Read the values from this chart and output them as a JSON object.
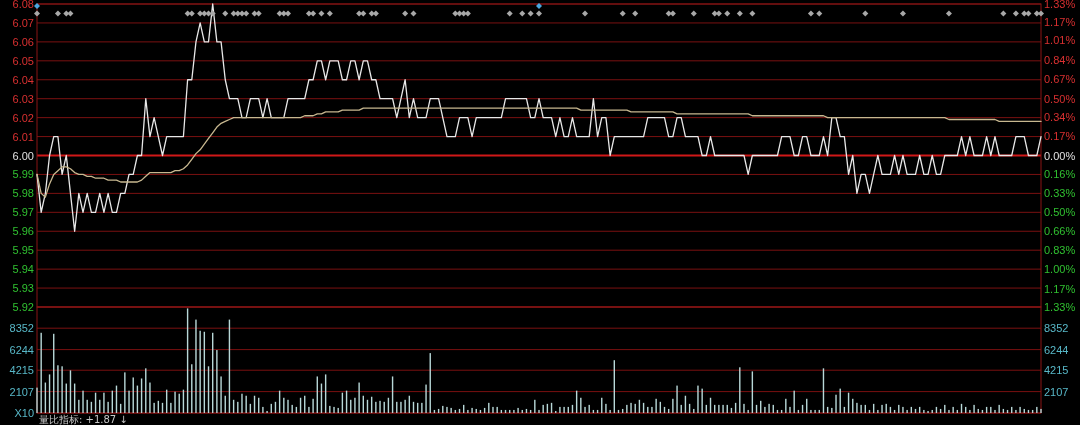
{
  "chart_data": [
    {
      "type": "line",
      "categories": [
        null,
        null,
        null,
        null,
        null,
        null,
        null,
        null,
        null,
        null,
        null,
        null,
        null,
        null,
        null,
        null,
        null,
        null,
        null,
        null,
        null,
        null,
        null,
        null,
        null,
        null,
        null,
        null,
        null,
        null,
        null,
        null,
        null,
        null,
        null,
        null,
        null,
        null,
        null,
        null,
        null,
        null,
        null,
        null,
        null,
        null,
        null,
        null,
        null,
        null,
        null,
        null,
        null,
        null,
        null,
        null,
        null,
        null,
        null,
        null,
        null,
        null,
        null,
        null,
        null,
        null,
        null,
        null,
        null,
        null,
        null,
        null,
        null,
        null,
        null,
        null,
        null,
        null,
        null,
        null,
        null,
        null,
        null,
        null,
        null,
        null,
        null,
        null,
        null,
        null,
        null,
        null,
        null,
        null,
        null,
        null,
        null,
        null,
        null,
        null,
        null,
        null,
        null,
        null,
        null,
        null,
        null,
        null,
        null,
        null,
        null,
        null,
        null,
        null,
        null,
        null,
        null,
        null,
        null,
        null,
        null,
        null,
        null,
        null,
        null,
        null,
        null,
        null,
        null,
        null,
        null,
        null,
        null,
        null,
        null,
        null,
        null,
        null,
        null,
        null,
        null,
        null,
        null,
        null,
        null,
        null,
        null,
        null,
        null,
        null,
        null,
        null,
        null,
        null,
        null,
        null,
        null,
        null,
        null,
        null,
        null,
        null,
        null,
        null,
        null,
        null,
        null,
        null,
        null,
        null,
        null,
        null,
        null,
        null,
        null,
        null,
        null,
        null,
        null,
        null,
        null,
        null,
        null,
        null,
        null,
        null,
        null,
        null,
        null,
        null,
        null,
        null,
        null,
        null,
        null,
        null,
        null,
        null,
        null,
        null,
        null,
        null,
        null,
        null,
        null,
        null,
        null,
        null,
        null,
        null,
        null,
        null,
        null,
        null,
        null,
        null,
        null,
        null,
        null,
        null,
        null,
        null,
        null,
        null,
        null,
        null,
        null,
        null,
        null,
        null,
        null,
        null,
        null,
        null,
        null,
        null,
        null,
        null,
        null,
        null,
        null
      ],
      "ylim": [
        5.92,
        6.08
      ],
      "yticks": [
        {
          "value": 5.92,
          "label": "5.92"
        },
        {
          "value": 5.93,
          "label": "5.93"
        },
        {
          "value": 5.94,
          "label": "5.94"
        },
        {
          "value": 5.95,
          "label": "5.95"
        },
        {
          "value": 5.96,
          "label": "5.96"
        },
        {
          "value": 5.97,
          "label": "5.97"
        },
        {
          "value": 5.98,
          "label": "5.98"
        },
        {
          "value": 5.99,
          "label": "5.99"
        },
        {
          "value": 6.0,
          "label": "6.00"
        },
        {
          "value": 6.01,
          "label": "6.01"
        },
        {
          "value": 6.02,
          "label": "6.02"
        },
        {
          "value": 6.03,
          "label": "6.03"
        },
        {
          "value": 6.04,
          "label": "6.04"
        },
        {
          "value": 6.05,
          "label": "6.05"
        },
        {
          "value": 6.06,
          "label": "6.06"
        },
        {
          "value": 6.07,
          "label": "6.07"
        },
        {
          "value": 6.08,
          "label": "6.08"
        }
      ],
      "y2lim": [
        -1.33,
        1.33
      ],
      "y2ticks": [
        {
          "value": -1.33,
          "label": "1.33%"
        },
        {
          "value": -1.17,
          "label": "1.17%"
        },
        {
          "value": -1.0,
          "label": "1.00%"
        },
        {
          "value": -0.83,
          "label": "0.83%"
        },
        {
          "value": -0.66,
          "label": "0.66%"
        },
        {
          "value": -0.5,
          "label": "0.50%"
        },
        {
          "value": -0.33,
          "label": "0.33%"
        },
        {
          "value": -0.16,
          "label": "0.16%"
        },
        {
          "value": 0,
          "label": "0.00%"
        },
        {
          "value": 0.17,
          "label": "0.17%"
        },
        {
          "value": 0.34,
          "label": "0.34%"
        },
        {
          "value": 0.5,
          "label": "0.50%"
        },
        {
          "value": 0.67,
          "label": "0.67%"
        },
        {
          "value": 0.84,
          "label": "0.84%"
        },
        {
          "value": 1.01,
          "label": "1.01%"
        },
        {
          "value": 1.17,
          "label": "1.17%"
        },
        {
          "value": 1.33,
          "label": "1.33%"
        }
      ],
      "grid": "y",
      "ref_lines": [
        {
          "axis": "y",
          "value": 6.0,
          "color": "#d01818"
        }
      ],
      "series": [
        {
          "color": "#e8e8e8",
          "values": [
            5.99,
            5.97,
            5.98,
            6.0,
            6.01,
            6.01,
            5.99,
            6.0,
            5.98,
            5.96,
            5.98,
            5.97,
            5.98,
            5.97,
            5.97,
            5.98,
            5.97,
            5.98,
            5.97,
            5.97,
            5.98,
            5.98,
            5.99,
            5.99,
            6.0,
            6.0,
            6.03,
            6.01,
            6.02,
            6.01,
            6.0,
            6.01,
            6.01,
            6.01,
            6.01,
            6.01,
            6.04,
            6.04,
            6.06,
            6.07,
            6.06,
            6.06,
            6.08,
            6.06,
            6.06,
            6.04,
            6.03,
            6.03,
            6.03,
            6.02,
            6.02,
            6.03,
            6.03,
            6.03,
            6.02,
            6.03,
            6.02,
            6.02,
            6.02,
            6.02,
            6.03,
            6.03,
            6.03,
            6.03,
            6.03,
            6.04,
            6.04,
            6.05,
            6.05,
            6.04,
            6.05,
            6.05,
            6.05,
            6.04,
            6.04,
            6.05,
            6.05,
            6.04,
            6.05,
            6.05,
            6.04,
            6.04,
            6.03,
            6.03,
            6.03,
            6.03,
            6.02,
            6.03,
            6.04,
            6.02,
            6.03,
            6.02,
            6.02,
            6.02,
            6.03,
            6.03,
            6.03,
            6.02,
            6.01,
            6.01,
            6.01,
            6.02,
            6.02,
            6.02,
            6.01,
            6.02,
            6.02,
            6.02,
            6.02,
            6.02,
            6.02,
            6.02,
            6.03,
            6.03,
            6.03,
            6.03,
            6.03,
            6.03,
            6.02,
            6.02,
            6.03,
            6.02,
            6.02,
            6.02,
            6.01,
            6.02,
            6.01,
            6.01,
            6.02,
            6.01,
            6.01,
            6.01,
            6.01,
            6.03,
            6.01,
            6.02,
            6.02,
            6.0,
            6.01,
            6.01,
            6.01,
            6.01,
            6.01,
            6.01,
            6.01,
            6.01,
            6.02,
            6.02,
            6.02,
            6.02,
            6.02,
            6.01,
            6.01,
            6.02,
            6.02,
            6.01,
            6.01,
            6.01,
            6.01,
            6.0,
            6.0,
            6.01,
            6.0,
            6.0,
            6.0,
            6.0,
            6.0,
            6.0,
            6.0,
            6.0,
            5.99,
            6.0,
            6.0,
            6.0,
            6.0,
            6.0,
            6.0,
            6.0,
            6.01,
            6.01,
            6.01,
            6.0,
            6.0,
            6.01,
            6.01,
            6.0,
            6.0,
            6.0,
            6.01,
            6.0,
            6.02,
            6.02,
            6.01,
            6.01,
            5.99,
            6.0,
            5.98,
            5.99,
            5.99,
            5.98,
            5.99,
            6.0,
            5.99,
            5.99,
            5.99,
            6.0,
            5.99,
            6.0,
            5.99,
            5.99,
            5.99,
            6.0,
            5.99,
            5.99,
            6.0,
            5.99,
            5.99,
            6.0,
            6.0,
            6.0,
            6.0,
            6.01,
            6.0,
            6.01,
            6.0,
            6.0,
            6.0,
            6.01,
            6.0,
            6.01,
            6.0,
            6.0,
            6.0,
            6.0,
            6.01,
            6.01,
            6.01,
            6.0,
            6.0,
            6.0,
            6.01
          ]
        },
        {
          "color": "#c8b890",
          "values": [
            5.99,
            5.98,
            5.978,
            5.985,
            5.99,
            5.992,
            5.994,
            5.994,
            5.993,
            5.991,
            5.99,
            5.99,
            5.989,
            5.989,
            5.988,
            5.988,
            5.988,
            5.987,
            5.987,
            5.987,
            5.986,
            5.986,
            5.986,
            5.986,
            5.986,
            5.987,
            5.989,
            5.991,
            5.991,
            5.991,
            5.991,
            5.991,
            5.991,
            5.992,
            5.992,
            5.993,
            5.995,
            5.998,
            6.001,
            6.003,
            6.006,
            6.009,
            6.012,
            6.015,
            6.017,
            6.018,
            6.019,
            6.02,
            6.02,
            6.02,
            6.02,
            6.02,
            6.02,
            6.02,
            6.02,
            6.02,
            6.02,
            6.02,
            6.02,
            6.02,
            6.02,
            6.02,
            6.02,
            6.02,
            6.021,
            6.021,
            6.021,
            6.022,
            6.022,
            6.023,
            6.023,
            6.023,
            6.023,
            6.024,
            6.024,
            6.024,
            6.024,
            6.024,
            6.025,
            6.025,
            6.025,
            6.025,
            6.025,
            6.025,
            6.025,
            6.025,
            6.025,
            6.025,
            6.025,
            6.025,
            6.025,
            6.025,
            6.025,
            6.025,
            6.025,
            6.025,
            6.025,
            6.025,
            6.025,
            6.025,
            6.025,
            6.025,
            6.025,
            6.025,
            6.025,
            6.025,
            6.025,
            6.025,
            6.025,
            6.025,
            6.025,
            6.025,
            6.025,
            6.025,
            6.025,
            6.025,
            6.025,
            6.025,
            6.025,
            6.025,
            6.025,
            6.025,
            6.025,
            6.025,
            6.025,
            6.025,
            6.025,
            6.025,
            6.025,
            6.025,
            6.024,
            6.024,
            6.024,
            6.024,
            6.024,
            6.024,
            6.024,
            6.024,
            6.024,
            6.024,
            6.024,
            6.024,
            6.023,
            6.023,
            6.023,
            6.023,
            6.023,
            6.023,
            6.023,
            6.023,
            6.023,
            6.023,
            6.023,
            6.022,
            6.022,
            6.022,
            6.022,
            6.022,
            6.022,
            6.022,
            6.022,
            6.022,
            6.022,
            6.022,
            6.022,
            6.022,
            6.022,
            6.022,
            6.022,
            6.022,
            6.022,
            6.021,
            6.021,
            6.021,
            6.021,
            6.021,
            6.021,
            6.021,
            6.021,
            6.021,
            6.021,
            6.021,
            6.021,
            6.021,
            6.021,
            6.021,
            6.021,
            6.021,
            6.021,
            6.02,
            6.02,
            6.02,
            6.02,
            6.02,
            6.02,
            6.02,
            6.02,
            6.02,
            6.02,
            6.02,
            6.02,
            6.02,
            6.02,
            6.02,
            6.02,
            6.02,
            6.02,
            6.02,
            6.02,
            6.02,
            6.02,
            6.02,
            6.02,
            6.02,
            6.02,
            6.02,
            6.02,
            6.02,
            6.019,
            6.019,
            6.019,
            6.019,
            6.019,
            6.019,
            6.019,
            6.019,
            6.019,
            6.019,
            6.019,
            6.019,
            6.018,
            6.018,
            6.018,
            6.018,
            6.018,
            6.018,
            6.018,
            6.018,
            6.018,
            6.018,
            6.018
          ]
        },
        {
          "type": "scatter",
          "marker": "diamond",
          "color": "#a8a8a8",
          "values": [
            6.075,
            null,
            null,
            null,
            null,
            6.075,
            null,
            6.075,
            6.075,
            null,
            null,
            null,
            null,
            null,
            null,
            null,
            null,
            null,
            null,
            null,
            null,
            null,
            null,
            null,
            null,
            null,
            null,
            null,
            null,
            null,
            null,
            null,
            null,
            null,
            null,
            null,
            6.075,
            6.075,
            null,
            6.075,
            6.075,
            6.075,
            6.075,
            null,
            null,
            6.075,
            null,
            6.075,
            6.075,
            6.075,
            6.075,
            null,
            6.075,
            6.075,
            null,
            null,
            null,
            null,
            6.075,
            6.075,
            6.075,
            null,
            null,
            null,
            null,
            6.075,
            6.075,
            null,
            6.075,
            null,
            6.075,
            null,
            null,
            null,
            null,
            null,
            null,
            6.075,
            6.075,
            null,
            6.075,
            6.075,
            null,
            null,
            null,
            null,
            null,
            null,
            6.075,
            null,
            6.075,
            null,
            null,
            null,
            null,
            null,
            null,
            null,
            null,
            null,
            6.075,
            6.075,
            6.075,
            6.075,
            null,
            null,
            null,
            null,
            null,
            null,
            null,
            null,
            null,
            6.075,
            null,
            null,
            6.075,
            null,
            6.075,
            null,
            6.075,
            null,
            null,
            null,
            null,
            null,
            null,
            null,
            null,
            null,
            null,
            6.075,
            null,
            null,
            null,
            null,
            null,
            null,
            null,
            null,
            6.075,
            null,
            null,
            6.075,
            null,
            null,
            null,
            null,
            null,
            null,
            null,
            6.075,
            6.075,
            null,
            null,
            null,
            null,
            6.075,
            null,
            null,
            null,
            null,
            6.075,
            6.075,
            null,
            6.075,
            null,
            null,
            6.075,
            null,
            null,
            6.075,
            null,
            null,
            null,
            null,
            null,
            null,
            null,
            null,
            null,
            null,
            null,
            null,
            null,
            6.075,
            null,
            6.075,
            null,
            null,
            null,
            null,
            null,
            null,
            null,
            null,
            null,
            null,
            6.075,
            null,
            null,
            null,
            null,
            null,
            null,
            null,
            null,
            6.075,
            null,
            null,
            null,
            null,
            null,
            null,
            null,
            null,
            null,
            null,
            6.075,
            null,
            null,
            null,
            null,
            null,
            null,
            null,
            null,
            null,
            null,
            null,
            null,
            6.075,
            null,
            null,
            6.075,
            null,
            6.075,
            6.075,
            null,
            6.075,
            6.075
          ]
        },
        {
          "type": "scatter",
          "marker": "diamond",
          "color": "#4aa8e0",
          "values": [
            6.079,
            null,
            null,
            null,
            null,
            null,
            null,
            null,
            null,
            null,
            null,
            null,
            null,
            null,
            null,
            null,
            null,
            null,
            null,
            null,
            null,
            null,
            null,
            null,
            null,
            null,
            null,
            null,
            null,
            null,
            null,
            null,
            null,
            null,
            null,
            null,
            null,
            null,
            null,
            null,
            null,
            null,
            null,
            null,
            null,
            null,
            null,
            null,
            null,
            null,
            null,
            null,
            null,
            null,
            null,
            null,
            null,
            null,
            null,
            null,
            null,
            null,
            null,
            null,
            null,
            null,
            null,
            null,
            null,
            null,
            null,
            null,
            null,
            null,
            null,
            null,
            null,
            null,
            null,
            null,
            null,
            null,
            null,
            null,
            null,
            null,
            null,
            null,
            null,
            null,
            null,
            null,
            null,
            null,
            null,
            null,
            null,
            null,
            null,
            null,
            null,
            null,
            null,
            null,
            null,
            null,
            null,
            null,
            null,
            null,
            null,
            null,
            null,
            null,
            null,
            null,
            null,
            null,
            null,
            null,
            6.079,
            null,
            null,
            null,
            null,
            null,
            null,
            null,
            null,
            null,
            null,
            null,
            null,
            null,
            null,
            null,
            null,
            null,
            null,
            null,
            null,
            null,
            null,
            null,
            null,
            null,
            null,
            null,
            null,
            null,
            null,
            null,
            null,
            null,
            null,
            null,
            null,
            null,
            null,
            null,
            null,
            null,
            null,
            null,
            null,
            null,
            null,
            null,
            null,
            null,
            null,
            null,
            null,
            null,
            null,
            null,
            null,
            null,
            null,
            null,
            null,
            null,
            null,
            null,
            null,
            null,
            null,
            null,
            null,
            null,
            null,
            null,
            null,
            null,
            null,
            null,
            null,
            null,
            null,
            null,
            null,
            null,
            null,
            null,
            null,
            null,
            null,
            null,
            null,
            null,
            null,
            null,
            null,
            null,
            null,
            null,
            null,
            null,
            null,
            null,
            null,
            null,
            null,
            null,
            null,
            null,
            null,
            null,
            null,
            null,
            null,
            null,
            null,
            null,
            null,
            null,
            null,
            null,
            null,
            null,
            null
          ]
        }
      ]
    },
    {
      "type": "bar",
      "color": "#b8d8d8",
      "grid": "y",
      "categories": [
        null,
        null,
        null,
        null,
        null,
        null,
        null,
        null,
        null,
        null,
        null,
        null,
        null,
        null,
        null,
        null,
        null,
        null,
        null,
        null,
        null,
        null,
        null,
        null,
        null,
        null,
        null,
        null,
        null,
        null,
        null,
        null,
        null,
        null,
        null,
        null,
        null,
        null,
        null,
        null,
        null,
        null,
        null,
        null,
        null,
        null,
        null,
        null,
        null,
        null,
        null,
        null,
        null,
        null,
        null,
        null,
        null,
        null,
        null,
        null,
        null,
        null,
        null,
        null,
        null,
        null,
        null,
        null,
        null,
        null,
        null,
        null,
        null,
        null,
        null,
        null,
        null,
        null,
        null,
        null,
        null,
        null,
        null,
        null,
        null,
        null,
        null,
        null,
        null,
        null,
        null,
        null,
        null,
        null,
        null,
        null,
        null,
        null,
        null,
        null,
        null,
        null,
        null,
        null,
        null,
        null,
        null,
        null,
        null,
        null,
        null,
        null,
        null,
        null,
        null,
        null,
        null,
        null,
        null,
        null,
        null,
        null,
        null,
        null,
        null,
        null,
        null,
        null,
        null,
        null,
        null,
        null,
        null,
        null,
        null,
        null,
        null,
        null,
        null,
        null,
        null,
        null,
        null,
        null,
        null,
        null,
        null,
        null,
        null,
        null,
        null,
        null,
        null,
        null,
        null,
        null,
        null,
        null,
        null,
        null,
        null,
        null,
        null,
        null,
        null,
        null,
        null,
        null,
        null,
        null,
        null,
        null,
        null,
        null,
        null,
        null,
        null,
        null,
        null,
        null,
        null,
        null,
        null,
        null,
        null,
        null,
        null,
        null,
        null,
        null,
        null,
        null,
        null,
        null,
        null,
        null,
        null,
        null,
        null,
        null,
        null,
        null,
        null,
        null,
        null,
        null,
        null,
        null,
        null,
        null,
        null,
        null,
        null,
        null,
        null,
        null,
        null,
        null,
        null,
        null,
        null,
        null,
        null,
        null,
        null,
        null,
        null,
        null,
        null,
        null,
        null,
        null,
        null,
        null,
        null,
        null,
        null,
        null,
        null,
        null,
        null
      ],
      "values": [
        2500,
        7900,
        3000,
        3800,
        7800,
        4700,
        4600,
        2900,
        4200,
        2900,
        1300,
        2200,
        1300,
        1100,
        2000,
        1300,
        2000,
        1100,
        2200,
        2700,
        900,
        4000,
        2200,
        3500,
        2700,
        3400,
        4400,
        3000,
        1000,
        1200,
        1000,
        2300,
        1000,
        2100,
        1900,
        2300,
        10300,
        4800,
        9200,
        8100,
        8000,
        4600,
        7900,
        6200,
        3600,
        1700,
        9200,
        1300,
        1100,
        1900,
        1700,
        900,
        1700,
        1500,
        600,
        200,
        900,
        1100,
        2200,
        1500,
        1300,
        800,
        600,
        1500,
        1700,
        600,
        1400,
        3600,
        2900,
        3800,
        700,
        600,
        500,
        2000,
        2200,
        1300,
        1500,
        3000,
        1700,
        1300,
        1600,
        1100,
        1200,
        1100,
        1500,
        3600,
        1100,
        1100,
        1300,
        1700,
        1100,
        1000,
        1000,
        2800,
        5900,
        300,
        400,
        700,
        600,
        500,
        300,
        400,
        800,
        300,
        500,
        400,
        300,
        500,
        1000,
        600,
        600,
        300,
        300,
        300,
        300,
        500,
        300,
        400,
        300,
        1300,
        300,
        800,
        900,
        1000,
        200,
        600,
        600,
        600,
        800,
        2200,
        1500,
        600,
        800,
        300,
        300,
        1500,
        900,
        300,
        5200,
        300,
        400,
        800,
        1000,
        900,
        1300,
        1000,
        600,
        600,
        1400,
        1100,
        600,
        400,
        1400,
        2700,
        800,
        1700,
        900,
        400,
        2700,
        2400,
        800,
        1500,
        800,
        800,
        800,
        800,
        500,
        1000,
        4500,
        900,
        300,
        4100,
        800,
        1200,
        600,
        900,
        800,
        300,
        300,
        1400,
        600,
        2200,
        300,
        800,
        1400,
        300,
        300,
        300,
        4400,
        600,
        500,
        1800,
        2400,
        600,
        2000,
        1400,
        1000,
        800,
        800,
        300,
        900,
        300,
        800,
        900,
        600,
        300,
        800,
        600,
        300,
        600,
        400,
        600,
        300,
        200,
        300,
        600,
        400,
        800,
        300,
        600,
        300,
        900,
        600,
        300,
        800,
        400,
        300,
        600,
        600,
        300,
        800,
        400,
        300,
        600,
        300,
        600,
        400,
        300,
        300,
        600,
        400
      ],
      "ylim": [
        0,
        10440
      ],
      "yticks": [
        {
          "value": 0,
          "label": "X10"
        },
        2107,
        4215,
        6244,
        8352
      ],
      "y2lim": [
        0,
        10440
      ],
      "y2ticks": [
        2107,
        4215,
        6244,
        8352
      ],
      "annotations": [
        "量比指标: +1.87 ↓"
      ]
    }
  ]
}
